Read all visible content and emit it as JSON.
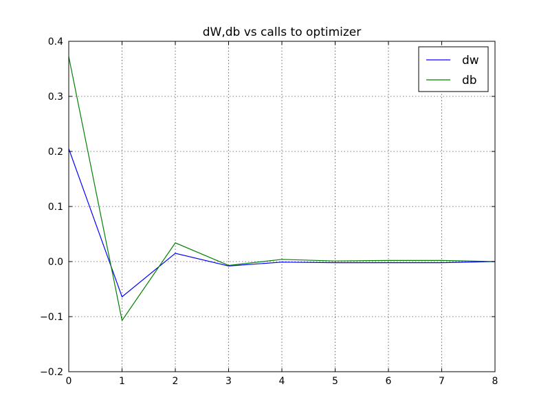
{
  "chart_data": {
    "type": "line",
    "title": "dW,db vs calls to optimizer",
    "xlabel": "",
    "ylabel": "",
    "xlim": [
      0,
      8
    ],
    "ylim": [
      -0.2,
      0.4
    ],
    "xticks": [
      0,
      1,
      2,
      3,
      4,
      5,
      6,
      7,
      8
    ],
    "yticks": [
      -0.2,
      -0.1,
      0.0,
      0.1,
      0.2,
      0.3,
      0.4
    ],
    "xtick_labels": [
      "0",
      "1",
      "2",
      "3",
      "4",
      "5",
      "6",
      "7",
      "8"
    ],
    "ytick_labels": [
      "−0.2",
      "−0.1",
      "0.0",
      "0.1",
      "0.2",
      "0.3",
      "0.4"
    ],
    "grid": true,
    "legend_position": "top-right",
    "x": [
      0,
      1,
      2,
      3,
      4,
      5,
      6,
      7,
      8
    ],
    "series": [
      {
        "name": "dw",
        "color": "#0000ff",
        "values": [
          0.205,
          -0.064,
          0.015,
          -0.008,
          -0.001,
          -0.002,
          -0.002,
          -0.002,
          0.0
        ]
      },
      {
        "name": "db",
        "color": "#008000",
        "values": [
          0.372,
          -0.107,
          0.034,
          -0.007,
          0.004,
          0.001,
          0.002,
          0.002,
          0.0
        ]
      }
    ]
  }
}
